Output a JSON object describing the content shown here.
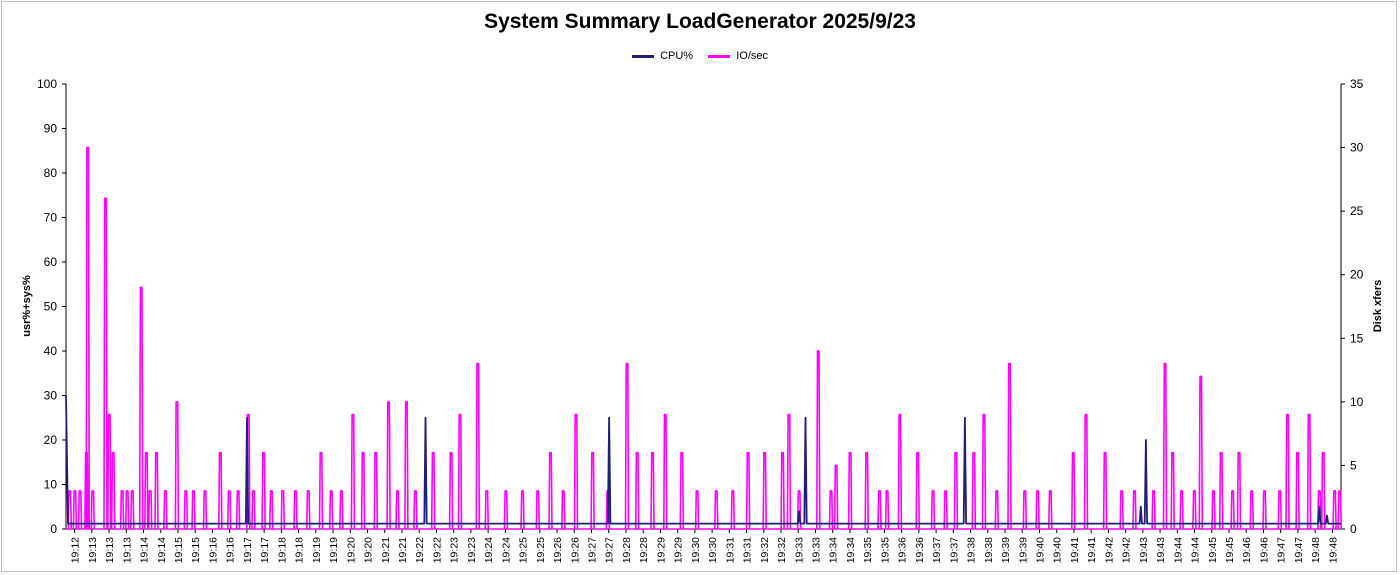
{
  "chart_data": {
    "type": "line",
    "title": "System Summary LoadGenerator  2025/9/23",
    "ylabel": "usr%+sys%",
    "y2label": "Disk xfers",
    "ylim": [
      0,
      100
    ],
    "y2lim": [
      0,
      35
    ],
    "yticks": [
      0,
      10,
      20,
      30,
      40,
      50,
      60,
      70,
      80,
      90,
      100
    ],
    "y2ticks": [
      0,
      5,
      10,
      15,
      20,
      25,
      30,
      35
    ],
    "legend_position": "top-center",
    "grid": false,
    "x_tick_labels": [
      "19:12",
      "19:13",
      "19:13",
      "19:13",
      "19:14",
      "19:14",
      "19:15",
      "19:15",
      "19:16",
      "19:16",
      "19:17",
      "19:17",
      "19:18",
      "19:18",
      "19:19",
      "19:19",
      "19:20",
      "19:20",
      "19:21",
      "19:21",
      "19:22",
      "19:22",
      "19:23",
      "19:23",
      "19:24",
      "19:24",
      "19:25",
      "19:25",
      "19:26",
      "19:26",
      "19:27",
      "19:27",
      "19:28",
      "19:28",
      "19:29",
      "19:29",
      "19:30",
      "19:30",
      "19:31",
      "19:31",
      "19:32",
      "19:32",
      "19:33",
      "19:33",
      "19:34",
      "19:34",
      "19:35",
      "19:35",
      "19:36",
      "19:36",
      "19:37",
      "19:37",
      "19:38",
      "19:38",
      "19:39",
      "19:39",
      "19:40",
      "19:40",
      "19:41",
      "19:41",
      "19:42",
      "19:42",
      "19:43",
      "19:43",
      "19:44",
      "19:44",
      "19:45",
      "19:45",
      "19:46",
      "19:46",
      "19:47",
      "19:47",
      "19:48",
      "19:48"
    ],
    "series": [
      {
        "name": "CPU%",
        "axis": "left",
        "color": "#1f1f7a",
        "baseline": 1.2,
        "spikes": [
          {
            "t": 0.0,
            "v": 30
          },
          {
            "t": 0.142,
            "v": 25
          },
          {
            "t": 0.282,
            "v": 25
          },
          {
            "t": 0.426,
            "v": 25
          },
          {
            "t": 0.575,
            "v": 4
          },
          {
            "t": 0.58,
            "v": 25
          },
          {
            "t": 0.705,
            "v": 25
          },
          {
            "t": 0.843,
            "v": 5
          },
          {
            "t": 0.847,
            "v": 20
          },
          {
            "t": 0.983,
            "v": 5
          },
          {
            "t": 0.989,
            "v": 3
          }
        ]
      },
      {
        "name": "IO/sec",
        "axis": "right",
        "color": "#ff00ff",
        "baseline": 0,
        "spikes": [
          {
            "t": 0.003,
            "v": 3
          },
          {
            "t": 0.007,
            "v": 3
          },
          {
            "t": 0.011,
            "v": 3
          },
          {
            "t": 0.016,
            "v": 6
          },
          {
            "t": 0.017,
            "v": 30
          },
          {
            "t": 0.021,
            "v": 3
          },
          {
            "t": 0.031,
            "v": 26
          },
          {
            "t": 0.034,
            "v": 9
          },
          {
            "t": 0.037,
            "v": 6
          },
          {
            "t": 0.044,
            "v": 3
          },
          {
            "t": 0.048,
            "v": 3
          },
          {
            "t": 0.052,
            "v": 3
          },
          {
            "t": 0.059,
            "v": 19
          },
          {
            "t": 0.063,
            "v": 6
          },
          {
            "t": 0.066,
            "v": 3
          },
          {
            "t": 0.071,
            "v": 6
          },
          {
            "t": 0.078,
            "v": 3
          },
          {
            "t": 0.087,
            "v": 10
          },
          {
            "t": 0.094,
            "v": 3
          },
          {
            "t": 0.1,
            "v": 3
          },
          {
            "t": 0.109,
            "v": 3
          },
          {
            "t": 0.121,
            "v": 6
          },
          {
            "t": 0.128,
            "v": 3
          },
          {
            "t": 0.135,
            "v": 3
          },
          {
            "t": 0.143,
            "v": 9
          },
          {
            "t": 0.147,
            "v": 3
          },
          {
            "t": 0.155,
            "v": 6
          },
          {
            "t": 0.161,
            "v": 3
          },
          {
            "t": 0.17,
            "v": 3
          },
          {
            "t": 0.18,
            "v": 3
          },
          {
            "t": 0.19,
            "v": 3
          },
          {
            "t": 0.2,
            "v": 6
          },
          {
            "t": 0.208,
            "v": 3
          },
          {
            "t": 0.216,
            "v": 3
          },
          {
            "t": 0.225,
            "v": 9
          },
          {
            "t": 0.233,
            "v": 6
          },
          {
            "t": 0.243,
            "v": 6
          },
          {
            "t": 0.253,
            "v": 10
          },
          {
            "t": 0.26,
            "v": 3
          },
          {
            "t": 0.267,
            "v": 10
          },
          {
            "t": 0.274,
            "v": 3
          },
          {
            "t": 0.288,
            "v": 6
          },
          {
            "t": 0.302,
            "v": 6
          },
          {
            "t": 0.309,
            "v": 9
          },
          {
            "t": 0.323,
            "v": 13
          },
          {
            "t": 0.33,
            "v": 3
          },
          {
            "t": 0.345,
            "v": 3
          },
          {
            "t": 0.358,
            "v": 3
          },
          {
            "t": 0.37,
            "v": 3
          },
          {
            "t": 0.38,
            "v": 6
          },
          {
            "t": 0.39,
            "v": 3
          },
          {
            "t": 0.4,
            "v": 9
          },
          {
            "t": 0.413,
            "v": 6
          },
          {
            "t": 0.425,
            "v": 3
          },
          {
            "t": 0.44,
            "v": 13
          },
          {
            "t": 0.448,
            "v": 6
          },
          {
            "t": 0.46,
            "v": 6
          },
          {
            "t": 0.47,
            "v": 9
          },
          {
            "t": 0.483,
            "v": 6
          },
          {
            "t": 0.495,
            "v": 3
          },
          {
            "t": 0.51,
            "v": 3
          },
          {
            "t": 0.523,
            "v": 3
          },
          {
            "t": 0.535,
            "v": 6
          },
          {
            "t": 0.548,
            "v": 6
          },
          {
            "t": 0.562,
            "v": 6
          },
          {
            "t": 0.567,
            "v": 9
          },
          {
            "t": 0.575,
            "v": 3
          },
          {
            "t": 0.59,
            "v": 14
          },
          {
            "t": 0.6,
            "v": 3
          },
          {
            "t": 0.604,
            "v": 5
          },
          {
            "t": 0.615,
            "v": 6
          },
          {
            "t": 0.628,
            "v": 6
          },
          {
            "t": 0.638,
            "v": 3
          },
          {
            "t": 0.644,
            "v": 3
          },
          {
            "t": 0.654,
            "v": 9
          },
          {
            "t": 0.668,
            "v": 6
          },
          {
            "t": 0.68,
            "v": 3
          },
          {
            "t": 0.69,
            "v": 3
          },
          {
            "t": 0.698,
            "v": 6
          },
          {
            "t": 0.712,
            "v": 6
          },
          {
            "t": 0.72,
            "v": 9
          },
          {
            "t": 0.73,
            "v": 3
          },
          {
            "t": 0.74,
            "v": 13
          },
          {
            "t": 0.752,
            "v": 3
          },
          {
            "t": 0.762,
            "v": 3
          },
          {
            "t": 0.772,
            "v": 3
          },
          {
            "t": 0.79,
            "v": 6
          },
          {
            "t": 0.8,
            "v": 9
          },
          {
            "t": 0.815,
            "v": 6
          },
          {
            "t": 0.828,
            "v": 3
          },
          {
            "t": 0.838,
            "v": 3
          },
          {
            "t": 0.853,
            "v": 3
          },
          {
            "t": 0.862,
            "v": 13
          },
          {
            "t": 0.868,
            "v": 6
          },
          {
            "t": 0.875,
            "v": 3
          },
          {
            "t": 0.885,
            "v": 3
          },
          {
            "t": 0.89,
            "v": 12
          },
          {
            "t": 0.9,
            "v": 3
          },
          {
            "t": 0.906,
            "v": 6
          },
          {
            "t": 0.915,
            "v": 3
          },
          {
            "t": 0.92,
            "v": 6
          },
          {
            "t": 0.93,
            "v": 3
          },
          {
            "t": 0.94,
            "v": 3
          },
          {
            "t": 0.952,
            "v": 3
          },
          {
            "t": 0.958,
            "v": 9
          },
          {
            "t": 0.966,
            "v": 6
          },
          {
            "t": 0.975,
            "v": 9
          },
          {
            "t": 0.983,
            "v": 3
          },
          {
            "t": 0.986,
            "v": 6
          },
          {
            "t": 0.995,
            "v": 3
          },
          {
            "t": 0.999,
            "v": 3
          }
        ]
      }
    ]
  }
}
